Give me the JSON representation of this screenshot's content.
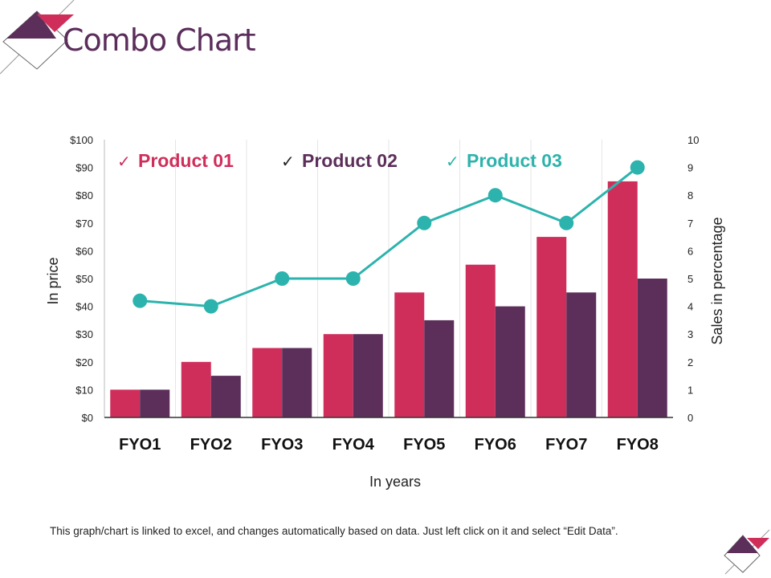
{
  "title": "Combo Chart",
  "footer": "This graph/chart is linked to excel, and changes automatically based on data. Just left click on it and select “Edit Data”.",
  "colors": {
    "product01": "#cf2e5b",
    "product02": "#5c2f5a",
    "product03": "#2db3ad",
    "title": "#5b2d5b"
  },
  "chart_data": {
    "type": "bar+line",
    "categories": [
      "FYO1",
      "FYO2",
      "FYO3",
      "FYO4",
      "FYO5",
      "FYO6",
      "FYO7",
      "FYO8"
    ],
    "series": [
      {
        "name": "Product 01",
        "type": "bar",
        "axis": "left",
        "values": [
          10,
          20,
          25,
          30,
          45,
          55,
          65,
          85
        ]
      },
      {
        "name": "Product 02",
        "type": "bar",
        "axis": "left",
        "values": [
          10,
          15,
          25,
          30,
          35,
          40,
          45,
          50
        ]
      },
      {
        "name": "Product 03",
        "type": "line",
        "axis": "right",
        "values": [
          4.2,
          4,
          5,
          5,
          7,
          8,
          7,
          9
        ]
      }
    ],
    "xlabel": "In years",
    "ylabel": "In price",
    "y2label": "Sales in percentage",
    "ylim": [
      0,
      100
    ],
    "y2lim": [
      0,
      10
    ],
    "yticks": [
      "$0",
      "$10",
      "$20",
      "$30",
      "$40",
      "$50",
      "$60",
      "$70",
      "$80",
      "$90",
      "$100"
    ],
    "y2ticks": [
      "0",
      "1",
      "2",
      "3",
      "4",
      "5",
      "6",
      "7",
      "8",
      "9",
      "10"
    ],
    "legend_position": "top",
    "grid": "vertical category separators"
  }
}
